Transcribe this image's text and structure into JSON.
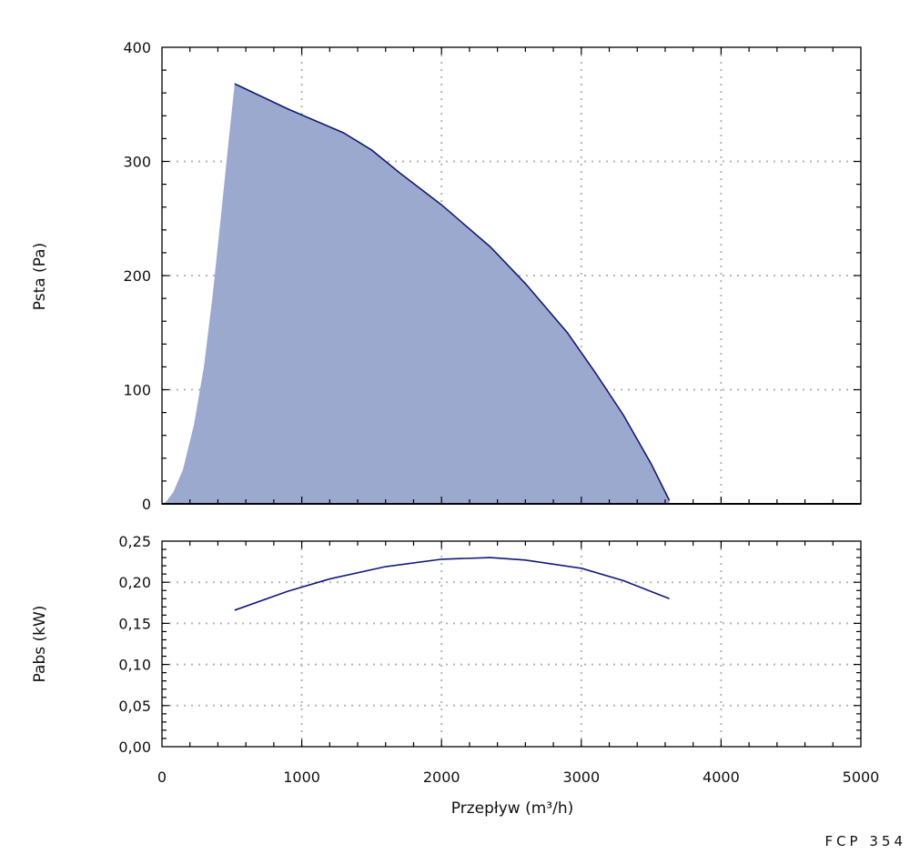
{
  "model_label": "FCP 354",
  "colors": {
    "curve": "#0e1a7a",
    "fill": "#9ca9cf",
    "grid": "#b5b5b5",
    "axis": "#000000"
  },
  "chart_data": [
    {
      "type": "area",
      "ylabel": "Psta (Pa)",
      "xlabel": "",
      "xlim": [
        0,
        5000
      ],
      "ylim": [
        0,
        400
      ],
      "yticks": [
        "0",
        "100",
        "200",
        "300",
        "400"
      ],
      "grid": true,
      "series": [
        {
          "x": [
            520,
            900,
            1300,
            1500,
            1700,
            2000,
            2350,
            2600,
            2900,
            3100,
            3300,
            3500,
            3630
          ],
          "values": [
            368,
            346,
            325,
            310,
            290,
            262,
            225,
            193,
            150,
            115,
            78,
            35,
            3
          ]
        }
      ],
      "fill_lower_edge": {
        "x": [
          0,
          30,
          80,
          150,
          230,
          300,
          360,
          420,
          470,
          520
        ],
        "values": [
          0,
          2,
          10,
          30,
          70,
          120,
          180,
          250,
          310,
          368
        ]
      }
    },
    {
      "type": "line",
      "ylabel": "Pabs (kW)",
      "xlabel": "Przepływ (m³/h)",
      "xlim": [
        0,
        5000
      ],
      "ylim": [
        0,
        0.25
      ],
      "yticks": [
        "0,00",
        "0,05",
        "0,10",
        "0,15",
        "0,20",
        "0,25"
      ],
      "xticks": [
        "0",
        "1000",
        "2000",
        "3000",
        "4000",
        "5000"
      ],
      "grid": true,
      "series": [
        {
          "x": [
            520,
            900,
            1200,
            1600,
            2000,
            2350,
            2600,
            3000,
            3300,
            3630
          ],
          "values": [
            0.166,
            0.189,
            0.204,
            0.219,
            0.228,
            0.23,
            0.227,
            0.217,
            0.202,
            0.18
          ]
        }
      ]
    }
  ]
}
